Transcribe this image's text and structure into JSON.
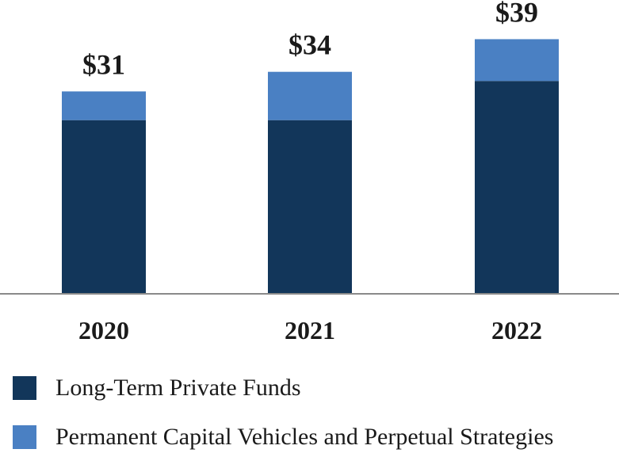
{
  "chart_data": {
    "type": "bar",
    "stacked": true,
    "categories": [
      "2020",
      "2021",
      "2022"
    ],
    "series": [
      {
        "name": "Long-Term Private Funds",
        "values": [
          26.6,
          26.6,
          32.6
        ],
        "color": "#12365a"
      },
      {
        "name": "Permanent Capital Vehicles and Perpetual Strategies",
        "values": [
          4.4,
          7.4,
          6.4
        ],
        "color": "#4a80c3"
      }
    ],
    "totals": [
      "$31",
      "$34",
      "$39"
    ],
    "title": "",
    "xlabel": "",
    "ylabel": "",
    "ylim": [
      0,
      45
    ],
    "grid": false,
    "legend_position": "bottom-left"
  }
}
